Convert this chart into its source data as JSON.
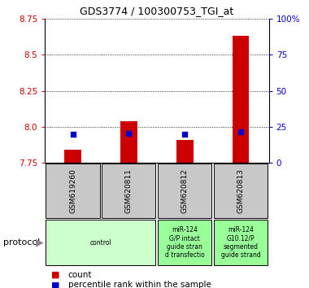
{
  "title": "GDS3774 / 100300753_TGI_at",
  "samples": [
    "GSM619260",
    "GSM620811",
    "GSM620812",
    "GSM620813"
  ],
  "count_values": [
    7.84,
    8.04,
    7.91,
    8.63
  ],
  "percentile_values": [
    19.5,
    20.5,
    20.0,
    21.5
  ],
  "ylim_left": [
    7.75,
    8.75
  ],
  "yticks_left": [
    7.75,
    8.0,
    8.25,
    8.5,
    8.75
  ],
  "yticks_right": [
    0,
    25,
    50,
    75,
    100
  ],
  "count_color": "#cc0000",
  "percentile_color": "#0000cc",
  "left_tick_color": "#cc0000",
  "right_tick_color": "#0000cc",
  "legend_count_label": "count",
  "legend_percentile_label": "percentile rank within the sample",
  "protocol_label": "protocol",
  "group_spans": [
    {
      "indices": [
        0,
        1
      ],
      "label": "control",
      "color": "#ccffcc"
    },
    {
      "indices": [
        2
      ],
      "label": "miR-124\nG/P intact\nguide stran\nd transfectio",
      "color": "#99ff99"
    },
    {
      "indices": [
        3
      ],
      "label": "miR-124\nG10.12/P\nsegmented\nguide strand",
      "color": "#99ff99"
    }
  ]
}
